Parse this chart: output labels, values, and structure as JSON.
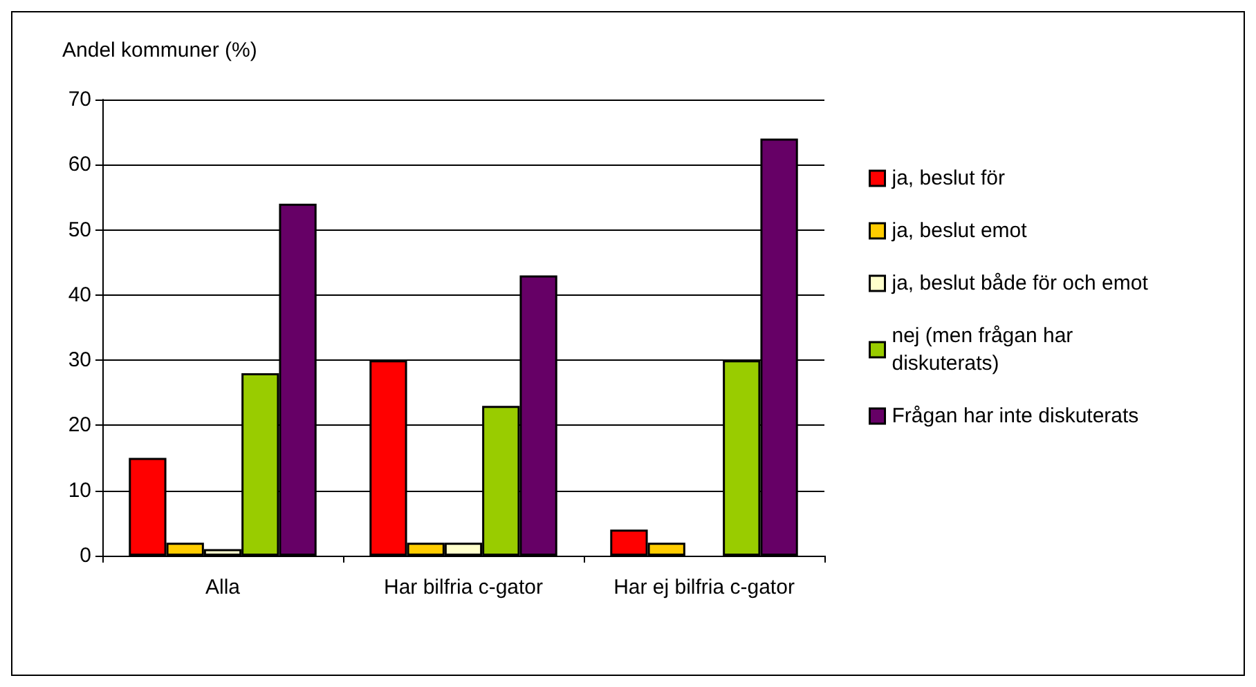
{
  "chart_data": {
    "type": "bar",
    "ylabel": "Andel kommuner (%)",
    "categories": [
      "Alla",
      "Har bilfria c-gator",
      "Har ej bilfria c-gator"
    ],
    "series": [
      {
        "name": "ja, beslut för",
        "color": "#ff0000",
        "values": [
          15,
          30,
          4
        ]
      },
      {
        "name": "ja, beslut emot",
        "color": "#ffcc00",
        "values": [
          2,
          2,
          2
        ]
      },
      {
        "name": "ja, beslut både för och emot",
        "color": "#ffffcc",
        "values": [
          1,
          2,
          null
        ]
      },
      {
        "name": "nej (men frågan har diskuterats)",
        "color": "#99cc00",
        "values": [
          28,
          23,
          30
        ]
      },
      {
        "name": "Frågan har inte diskuterats",
        "color": "#660066",
        "values": [
          54,
          43,
          64
        ]
      }
    ],
    "ylim": [
      0,
      70
    ],
    "yticks": [
      0,
      10,
      20,
      30,
      40,
      50,
      60,
      70
    ],
    "grid": "y",
    "legend": "right"
  }
}
